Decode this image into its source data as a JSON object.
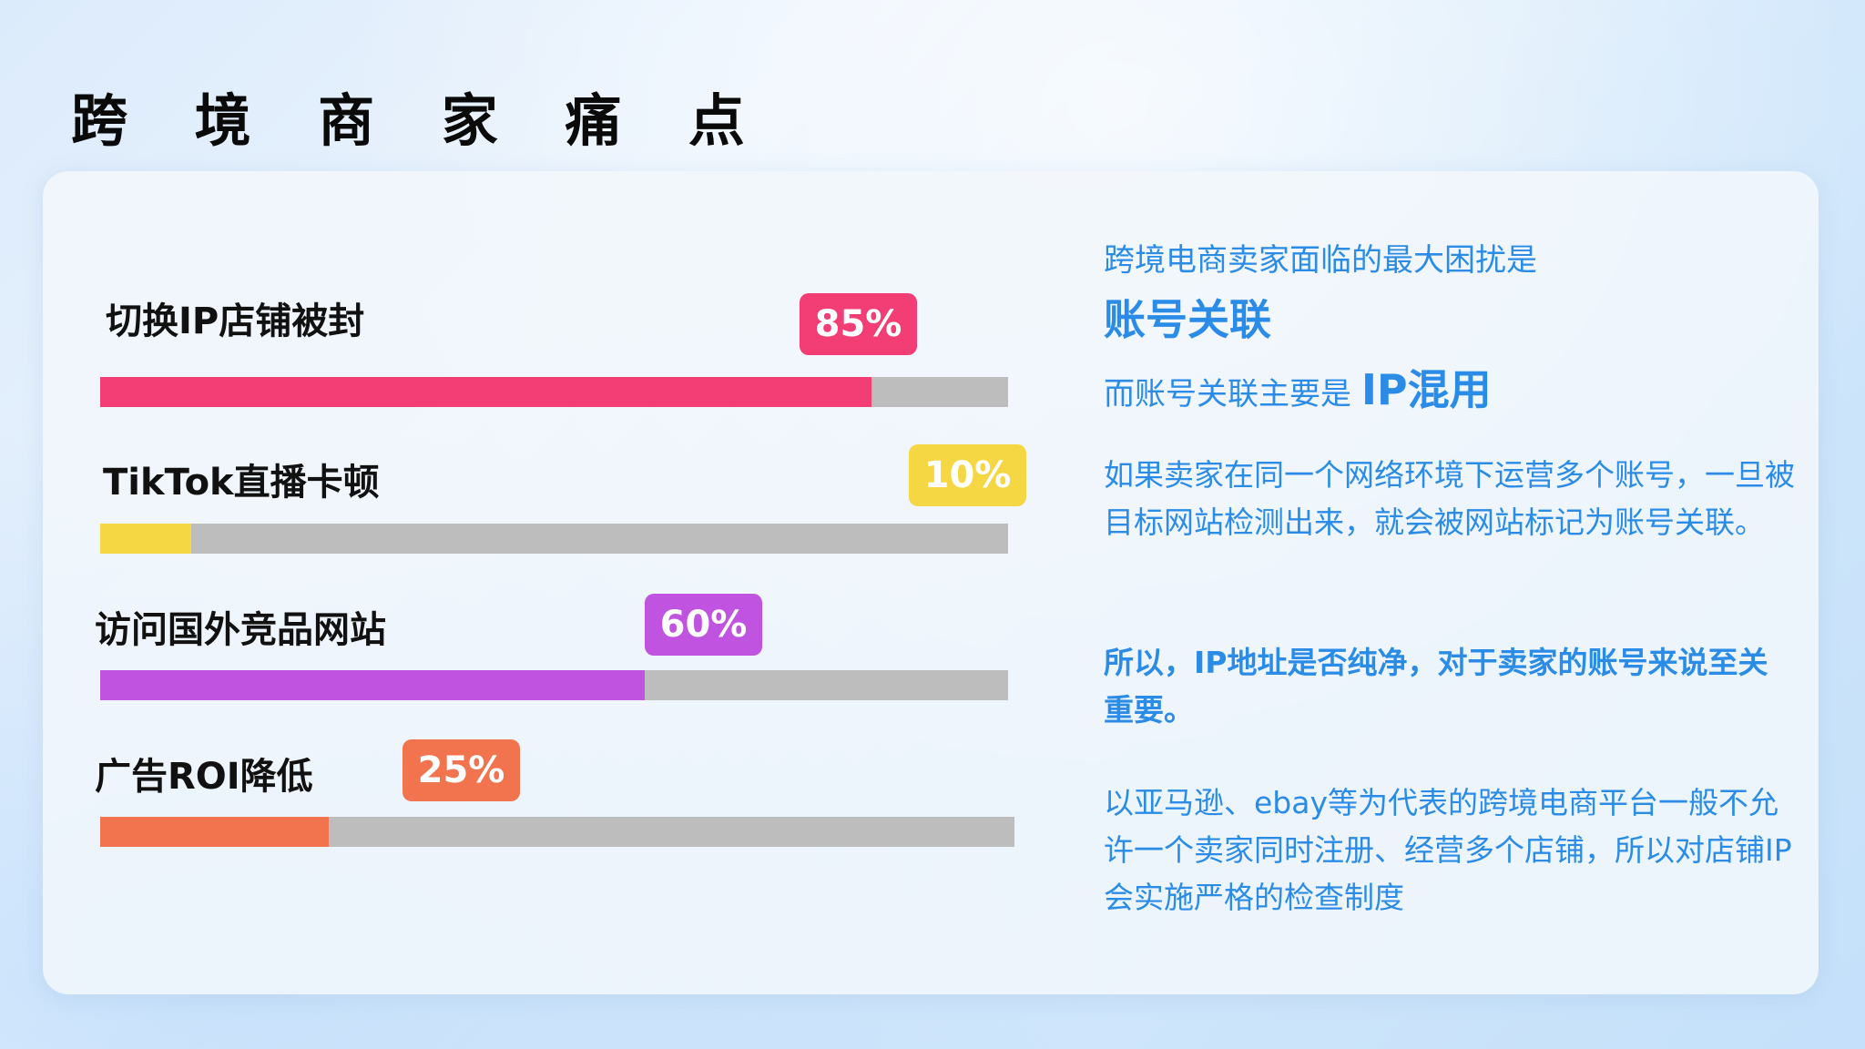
{
  "title": "跨 境 商 家 痛 点",
  "colors": {
    "track": "#bdbdbd",
    "text_blue": "#2a8ce6"
  },
  "pain_points": [
    {
      "label": "切换IP店铺被封",
      "badge": "85%",
      "value": 85,
      "color": "#f23d75"
    },
    {
      "label": "TikTok直播卡顿",
      "badge": "10%",
      "value": 10,
      "color": "#f5d744"
    },
    {
      "label": "访问国外竞品网站",
      "badge": "60%",
      "value": 60,
      "color": "#c053e0"
    },
    {
      "label": "广告ROI降低",
      "badge": "25%",
      "value": 25,
      "color": "#f2744f"
    }
  ],
  "right": {
    "intro": "跨境电商卖家面临的最大困扰是",
    "highlight1": "账号关联",
    "line3_prefix": "而账号关联主要是 ",
    "highlight2": "IP混用",
    "para1": "如果卖家在同一个网络环境下运营多个账号，一旦被目标网站检测出来，就会被网站标记为账号关联。",
    "para2": "所以，IP地址是否纯净，对于卖家的账号来说至关重要。",
    "para3": "以亚马逊、ebay等为代表的跨境电商平台一般不允许一个卖家同时注册、经营多个店铺，所以对店铺IP会实施严格的检查制度"
  }
}
